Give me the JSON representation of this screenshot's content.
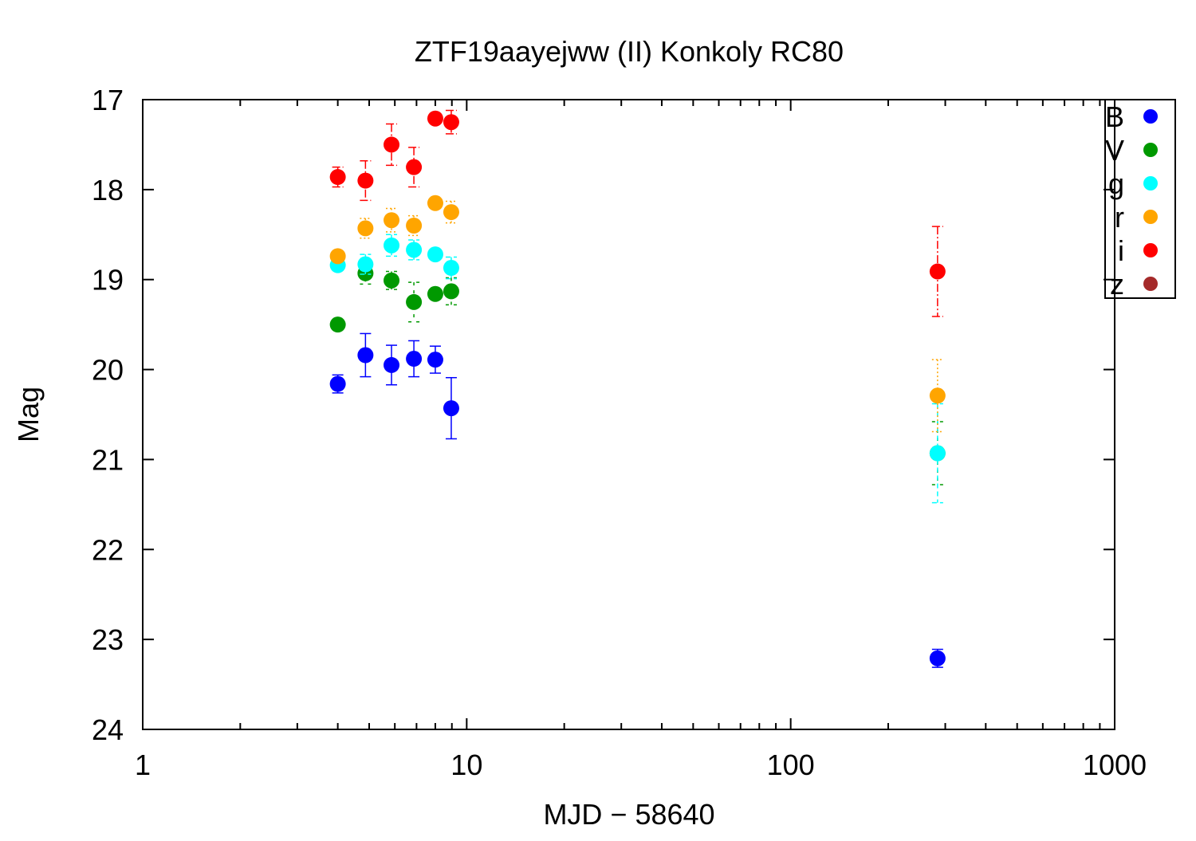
{
  "chart_data": {
    "type": "scatter",
    "title": "ZTF19aayejww (II) Konkoly RC80",
    "xlabel": "MJD − 58640",
    "ylabel": "Mag",
    "xscale": "log",
    "xlim": [
      1,
      1000
    ],
    "ylim": [
      24,
      17
    ],
    "y_inverted": true,
    "xticks": [
      "1",
      "10",
      "100",
      "1000"
    ],
    "yticks": [
      "17",
      "18",
      "19",
      "20",
      "21",
      "22",
      "23",
      "24"
    ],
    "legend_position": "top-right",
    "series": [
      {
        "name": "B",
        "color": "#0000ff",
        "dash": "",
        "x": [
          4.0,
          4.87,
          5.86,
          6.87,
          8.0,
          8.96,
          284
        ],
        "y": [
          20.16,
          19.84,
          19.95,
          19.88,
          19.89,
          20.43,
          23.21
        ],
        "err": [
          0.1,
          0.24,
          0.22,
          0.2,
          0.15,
          0.34,
          0.1
        ]
      },
      {
        "name": "V",
        "color": "#009900",
        "dash": "4,6",
        "x": [
          4.0,
          4.87,
          5.86,
          6.87,
          8.0,
          8.96,
          284
        ],
        "y": [
          19.5,
          18.93,
          19.01,
          19.25,
          19.16,
          19.13,
          20.93
        ],
        "err": [
          0.05,
          0.12,
          0.1,
          0.22,
          0.05,
          0.15,
          0.35
        ]
      },
      {
        "name": "g",
        "color": "#00ffff",
        "dash": "6,4",
        "x": [
          4.0,
          4.87,
          5.86,
          6.87,
          8.0,
          8.96,
          284
        ],
        "y": [
          18.84,
          18.83,
          18.62,
          18.67,
          18.72,
          18.87,
          20.93
        ],
        "err": [
          0.05,
          0.11,
          0.12,
          0.11,
          0.05,
          0.12,
          0.55
        ]
      },
      {
        "name": "r",
        "color": "#ffa500",
        "dash": "2,3",
        "x": [
          4.0,
          4.87,
          5.86,
          6.87,
          8.0,
          8.96,
          284
        ],
        "y": [
          18.74,
          18.43,
          18.34,
          18.4,
          18.15,
          18.25,
          20.29
        ],
        "err": [
          0.05,
          0.11,
          0.13,
          0.11,
          0.05,
          0.12,
          0.4
        ]
      },
      {
        "name": "i",
        "color": "#ff0000",
        "dash": "10,3,2,3",
        "x": [
          4.0,
          4.87,
          5.86,
          6.87,
          8.0,
          8.96,
          284
        ],
        "y": [
          17.86,
          17.9,
          17.5,
          17.75,
          17.21,
          17.25,
          18.91
        ],
        "err": [
          0.11,
          0.22,
          0.23,
          0.22,
          0.05,
          0.13,
          0.5
        ]
      },
      {
        "name": "z",
        "color": "#a52a2a",
        "dash": "",
        "x": [],
        "y": [],
        "err": []
      }
    ]
  }
}
